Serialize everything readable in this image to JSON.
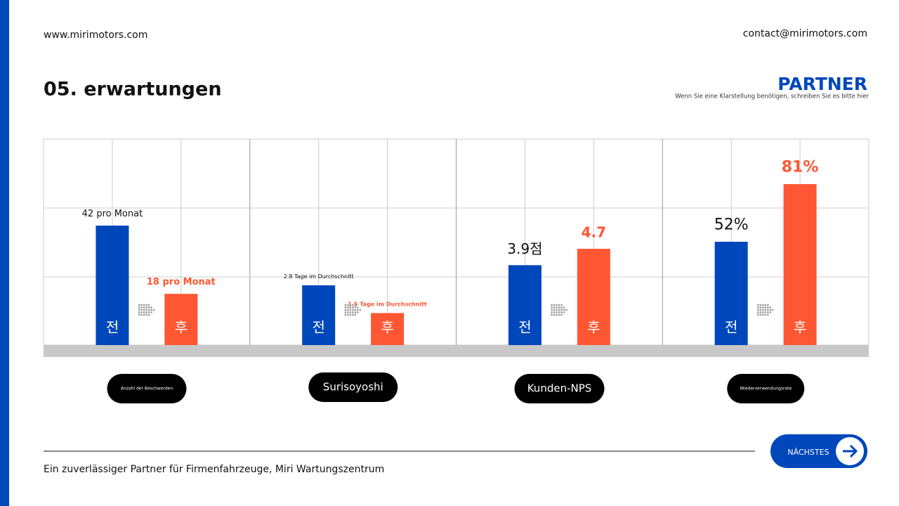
{
  "header": {
    "website": "www.mirimotors.com",
    "contact": "contact@mirimotors.com",
    "title": "05. erwartungen",
    "brand": "PARTNER",
    "brand_note": "Wenn Sie eine Klarstellung benötigen, schreiben Sie es bitte hier"
  },
  "chart_data": [
    {
      "type": "bar",
      "title": "Anzahl der Beschwerden",
      "categories": [
        "전",
        "후"
      ],
      "values": [
        42,
        18
      ],
      "value_labels": [
        "42 pro Monat",
        "18 pro Monat"
      ],
      "colors": [
        "#0047bb",
        "#ff5733"
      ]
    },
    {
      "type": "bar",
      "title": "Surisoyoshi",
      "categories": [
        "전",
        "후"
      ],
      "values": [
        2.8,
        1.5
      ],
      "value_labels": [
        "2.8 Tage im Durchschnitt",
        "1.5 Tage im Durchschnitt"
      ],
      "colors": [
        "#0047bb",
        "#ff5733"
      ]
    },
    {
      "type": "bar",
      "title": "Kunden-NPS",
      "categories": [
        "전",
        "후"
      ],
      "values": [
        3.9,
        4.7
      ],
      "value_labels": [
        "3.9점",
        "4.7"
      ],
      "colors": [
        "#0047bb",
        "#ff5733"
      ]
    },
    {
      "type": "bar",
      "title": "Wiederverwendungsrate",
      "categories": [
        "전",
        "후"
      ],
      "values": [
        52,
        81
      ],
      "value_labels": [
        "52%",
        "81%"
      ],
      "colors": [
        "#0047bb",
        "#ff5733"
      ]
    }
  ],
  "footer": {
    "tagline": "Ein zuverlässiger Partner für Firmenfahrzeuge, Miri Wartungszentrum",
    "button": "NÄCHSTES"
  }
}
